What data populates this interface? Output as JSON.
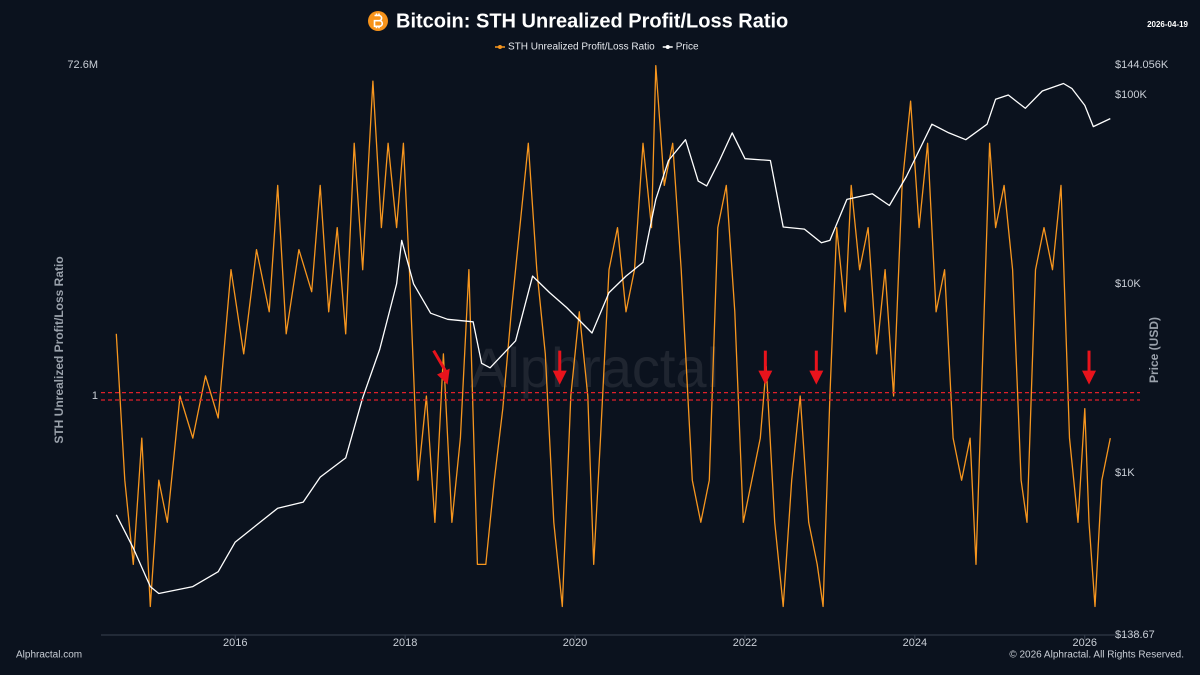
{
  "chart_data": {
    "type": "line",
    "title": "Bitcoin: STH Unrealized Profit/Loss Ratio",
    "date": "2026-04-19",
    "watermark": "Alphractal",
    "ylabel": "STH Unrealized Profit/Loss Ratio",
    "y2label": "Price (USD)",
    "footer_left": "Alphractal.com",
    "footer_right": "© 2026 Alphractal. All Rights Reserved.",
    "xlim": [
      2014.42,
      2026.65
    ],
    "xticks": [
      2016,
      2018,
      2020,
      2022,
      2024,
      2026
    ],
    "ylog": true,
    "ylim": [
      2.1e-06,
      72600000
    ],
    "yticks": [
      {
        "value": 72600000,
        "label": "72.6M"
      },
      1
    ],
    "y2log": true,
    "y2lim": [
      138.67,
      144056
    ],
    "y2ticks": [
      {
        "value": 144056,
        "label": "$144.056K"
      },
      {
        "value": 100000,
        "label": "$100K"
      },
      {
        "value": 10000,
        "label": "$10K"
      },
      {
        "value": 1000,
        "label": "$1K"
      },
      {
        "value": 138.67,
        "label": "$138.67"
      }
    ],
    "hlines": [
      1.2,
      0.8
    ],
    "hline_color": "#e0202a",
    "arrows": [
      2018.5,
      2019.82,
      2022.24,
      2022.84,
      2026.05
    ],
    "arrow_color": "#e8131c",
    "series": [
      {
        "name": "STH Unrealized Profit/Loss Ratio",
        "color": "#f7961e",
        "x": [
          2014.6,
          2014.7,
          2014.8,
          2014.9,
          2015.0,
          2015.1,
          2015.2,
          2015.35,
          2015.5,
          2015.65,
          2015.8,
          2015.95,
          2016.1,
          2016.25,
          2016.4,
          2016.5,
          2016.6,
          2016.75,
          2016.9,
          2017.0,
          2017.1,
          2017.2,
          2017.3,
          2017.4,
          2017.5,
          2017.62,
          2017.72,
          2017.8,
          2017.9,
          2017.98,
          2018.05,
          2018.15,
          2018.25,
          2018.35,
          2018.45,
          2018.55,
          2018.65,
          2018.75,
          2018.85,
          2018.95,
          2019.05,
          2019.15,
          2019.25,
          2019.35,
          2019.45,
          2019.55,
          2019.65,
          2019.75,
          2019.85,
          2019.95,
          2020.05,
          2020.15,
          2020.22,
          2020.3,
          2020.4,
          2020.5,
          2020.6,
          2020.7,
          2020.8,
          2020.9,
          2020.95,
          2021.05,
          2021.15,
          2021.25,
          2021.38,
          2021.48,
          2021.58,
          2021.68,
          2021.78,
          2021.88,
          2021.98,
          2022.08,
          2022.18,
          2022.25,
          2022.35,
          2022.45,
          2022.55,
          2022.65,
          2022.75,
          2022.85,
          2022.92,
          2023.0,
          2023.08,
          2023.18,
          2023.25,
          2023.35,
          2023.45,
          2023.55,
          2023.65,
          2023.75,
          2023.85,
          2023.95,
          2024.05,
          2024.15,
          2024.25,
          2024.35,
          2024.45,
          2024.55,
          2024.65,
          2024.72,
          2024.8,
          2024.88,
          2024.95,
          2025.05,
          2025.15,
          2025.25,
          2025.32,
          2025.42,
          2025.52,
          2025.62,
          2025.72,
          2025.82,
          2025.92,
          2026.0,
          2026.05,
          2026.12,
          2026.2,
          2026.3
        ],
        "values": [
          30,
          0.01,
          0.0001,
          0.1,
          1e-05,
          0.01,
          0.001,
          1,
          0.1,
          3,
          0.3,
          1000,
          10,
          3000,
          100,
          100000,
          30,
          3000,
          300,
          100000,
          100,
          10000,
          30,
          1000000,
          1000,
          30000000,
          10000,
          1000000,
          10000,
          1000000,
          1000,
          0.01,
          1,
          0.001,
          10,
          0.001,
          0.1,
          1000,
          0.0001,
          0.0001,
          0.01,
          0.5,
          100,
          10000,
          1000000,
          1000,
          10,
          0.001,
          1e-05,
          1,
          100,
          1,
          0.0001,
          0.1,
          1000,
          10000,
          100,
          1000,
          1000000,
          10000,
          70000000,
          100000,
          1000000,
          1000,
          0.01,
          0.001,
          0.01,
          10000,
          100000,
          100,
          0.001,
          0.01,
          0.1,
          5,
          0.001,
          1e-05,
          0.01,
          1,
          0.001,
          0.0001,
          1e-05,
          1,
          10000,
          100,
          100000,
          1000,
          10000,
          10,
          1000,
          1,
          100000,
          10000000,
          10000,
          1000000,
          100,
          1000,
          0.1,
          0.01,
          0.1,
          0.0001,
          10,
          1000000,
          10000,
          100000,
          1000,
          0.01,
          0.001,
          1000,
          10000,
          1000,
          100000,
          0.1,
          0.001,
          0.5,
          0.001,
          1e-05,
          0.01,
          0.1
        ]
      },
      {
        "name": "Price",
        "color": "#ffffff",
        "axis": "y2",
        "x": [
          2014.6,
          2014.8,
          2015.0,
          2015.1,
          2015.5,
          2015.8,
          2016.0,
          2016.5,
          2016.8,
          2017.0,
          2017.3,
          2017.5,
          2017.7,
          2017.9,
          2017.96,
          2018.1,
          2018.3,
          2018.5,
          2018.8,
          2018.9,
          2019.0,
          2019.3,
          2019.5,
          2019.7,
          2019.9,
          2020.2,
          2020.4,
          2020.6,
          2020.8,
          2020.95,
          2021.1,
          2021.3,
          2021.45,
          2021.55,
          2021.7,
          2021.85,
          2022.0,
          2022.3,
          2022.45,
          2022.7,
          2022.9,
          2023.0,
          2023.2,
          2023.5,
          2023.7,
          2023.9,
          2024.2,
          2024.4,
          2024.6,
          2024.85,
          2024.95,
          2025.1,
          2025.3,
          2025.5,
          2025.75,
          2025.85,
          2026.0,
          2026.1,
          2026.3
        ],
        "values": [
          600,
          400,
          250,
          230,
          250,
          300,
          430,
          650,
          700,
          950,
          1200,
          2500,
          4500,
          10000,
          17000,
          10000,
          7000,
          6500,
          6300,
          3800,
          3600,
          5000,
          11000,
          9000,
          7500,
          5500,
          9000,
          11000,
          13000,
          28000,
          45000,
          58000,
          35000,
          33000,
          45000,
          63000,
          46000,
          45000,
          20000,
          19500,
          16500,
          17000,
          28000,
          30000,
          26000,
          37000,
          70000,
          63000,
          58000,
          70000,
          95000,
          100000,
          85000,
          105000,
          115000,
          108000,
          88000,
          68000,
          75000
        ]
      }
    ]
  }
}
